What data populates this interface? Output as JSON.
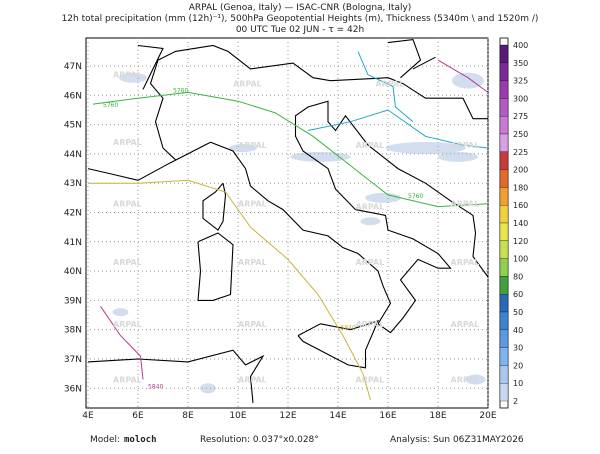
{
  "header": {
    "line1": "ARPAL (Genoa, Italy)  —  ISAC-CNR (Bologna, Italy)",
    "line2": "12h total precipitation (mm (12h)⁻¹), 500hPa Geopotential Heights (m), Thickness (5340m \\ and 1520m /)",
    "line3": "00 UTC Tue 02 JUN  -  τ = 42h"
  },
  "map": {
    "lat_labels": [
      "47N",
      "46N",
      "45N",
      "44N",
      "43N",
      "42N",
      "41N",
      "40N",
      "39N",
      "38N",
      "37N",
      "36N"
    ],
    "lon_labels": [
      "4E",
      "6E",
      "8E",
      "10E",
      "12E",
      "14E",
      "16E",
      "18E",
      "20E"
    ],
    "watermark": "ARPAL",
    "contour_labels": [
      "5760",
      "5760",
      "5840",
      "5840",
      "5760"
    ]
  },
  "colorbar": {
    "levels": [
      "400",
      "350",
      "325",
      "300",
      "275",
      "250",
      "225",
      "200",
      "180",
      "160",
      "140",
      "120",
      "100",
      "80",
      "60",
      "50",
      "40",
      "30",
      "20",
      "10",
      "2"
    ],
    "colors": [
      "#5a1a78",
      "#7a2a96",
      "#9a3cb0",
      "#b45ac4",
      "#c87ad2",
      "#d8a0e0",
      "#c43c3c",
      "#e26a2a",
      "#f0a030",
      "#f2d23c",
      "#e8e84c",
      "#c8e050",
      "#90d050",
      "#40a040",
      "#2a6ab4",
      "#3c84d0",
      "#5a9ae0",
      "#80b4ea",
      "#a8c8f0",
      "#c8d8f0"
    ]
  },
  "footer": {
    "model_label": "Model:",
    "model": "moloch",
    "resolution": "Resolution: 0.037°x0.028°",
    "analysis": "Analysis: Sun 06Z31MAY2026"
  }
}
